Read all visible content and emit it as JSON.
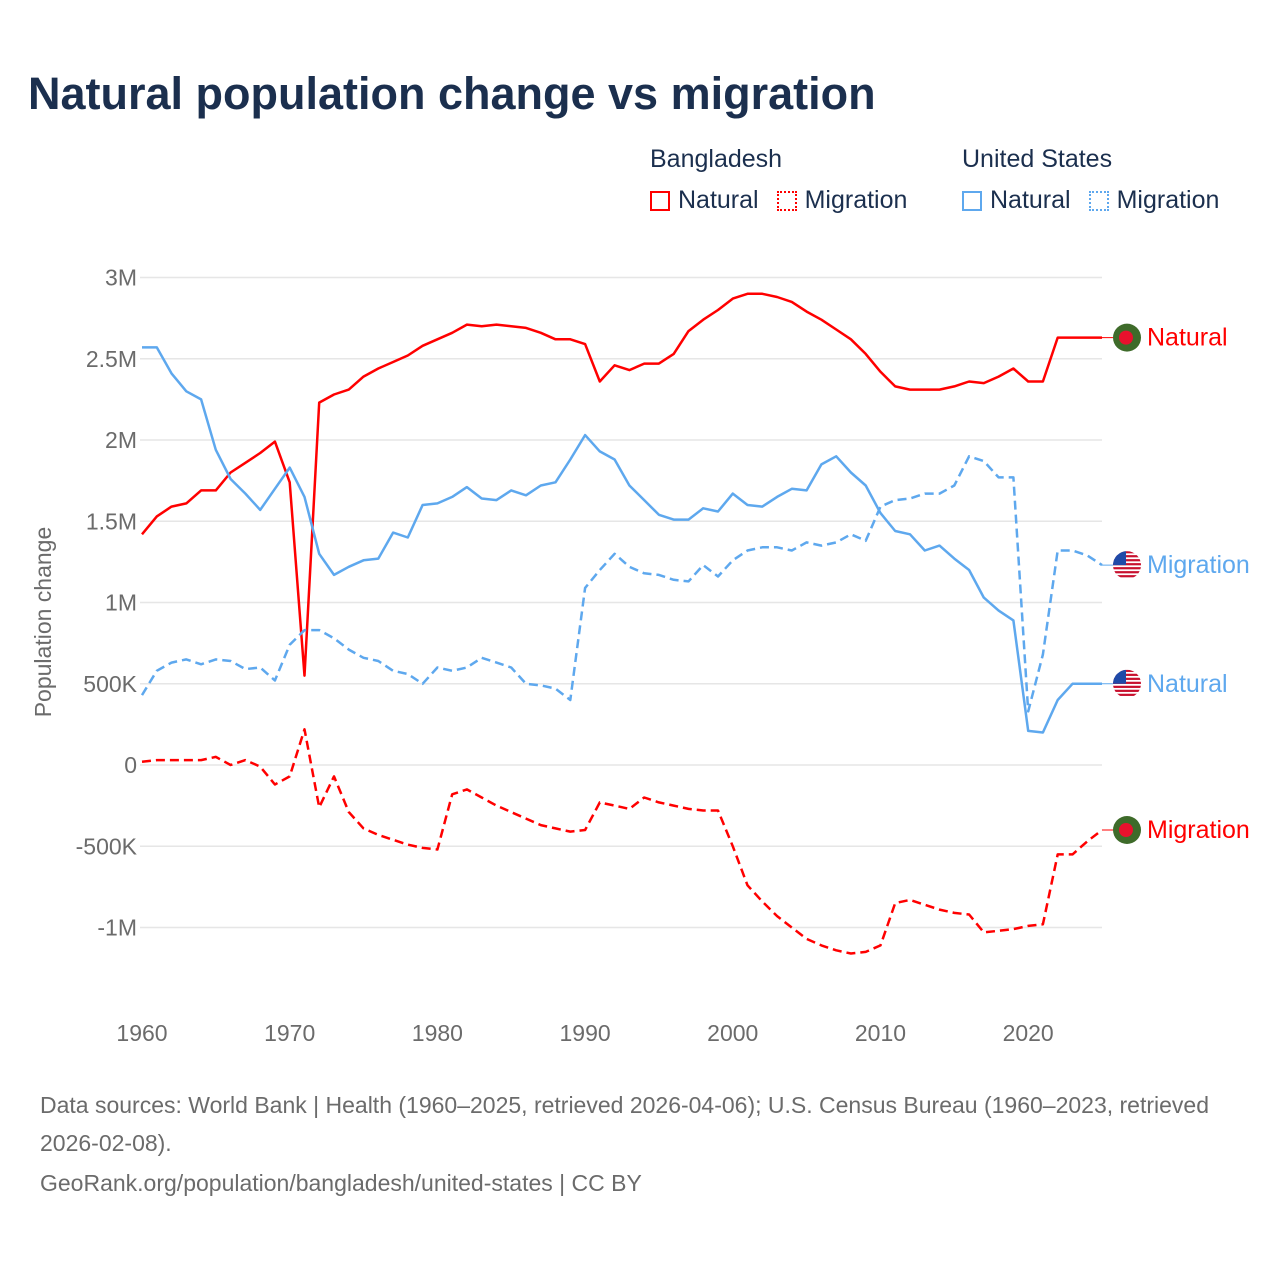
{
  "title": "Natural population change vs migration",
  "legend": {
    "groups": [
      {
        "name": "Bangladesh",
        "items": [
          "Natural",
          "Migration"
        ],
        "color": "#ff0000"
      },
      {
        "name": "United States",
        "items": [
          "Natural",
          "Migration"
        ],
        "color": "#5ea8ee"
      }
    ]
  },
  "footer": {
    "sources": "Data sources: World Bank | Health (1960–2025, retrieved 2026-04-06); U.S. Census Bureau (1960–2023, retrieved 2026-02-08).",
    "link": "GeoRank.org/population/bangladesh/united-states | CC BY"
  },
  "chart_data": {
    "type": "line",
    "title": "Natural population change vs migration",
    "xlabel": "",
    "ylabel": "Population change",
    "xlim": [
      1960,
      2025
    ],
    "ylim": [
      -1500000,
      3000000
    ],
    "x_ticks": [
      1960,
      1970,
      1980,
      1990,
      2000,
      2010,
      2020
    ],
    "y_ticks": [
      {
        "value": 3000000,
        "label": "3M"
      },
      {
        "value": 2500000,
        "label": "2.5M"
      },
      {
        "value": 2000000,
        "label": "2M"
      },
      {
        "value": 1500000,
        "label": "1.5M"
      },
      {
        "value": 1000000,
        "label": "1M"
      },
      {
        "value": 500000,
        "label": "500K"
      },
      {
        "value": 0,
        "label": "0"
      },
      {
        "value": -500000,
        "label": "-500K"
      },
      {
        "value": -1000000,
        "label": "-1M"
      }
    ],
    "grid": true,
    "legend_position": "top-right",
    "x_start": 1960,
    "series": [
      {
        "name": "Bangladesh Natural",
        "label": "Natural",
        "country": "Bangladesh",
        "color": "#ff0000",
        "dashed": false,
        "units": "millions",
        "values": [
          1.42,
          1.53,
          1.59,
          1.61,
          1.69,
          1.69,
          1.8,
          1.86,
          1.92,
          1.99,
          1.74,
          0.55,
          2.23,
          2.28,
          2.31,
          2.39,
          2.44,
          2.48,
          2.52,
          2.58,
          2.62,
          2.66,
          2.71,
          2.7,
          2.71,
          2.7,
          2.69,
          2.66,
          2.62,
          2.62,
          2.59,
          2.36,
          2.46,
          2.43,
          2.47,
          2.47,
          2.53,
          2.67,
          2.74,
          2.8,
          2.87,
          2.9,
          2.9,
          2.88,
          2.85,
          2.79,
          2.74,
          2.68,
          2.62,
          2.53,
          2.42,
          2.33,
          2.31,
          2.31,
          2.31,
          2.33,
          2.36,
          2.35,
          2.39,
          2.44,
          2.36,
          2.36,
          2.63,
          2.63,
          2.63,
          2.63
        ]
      },
      {
        "name": "Bangladesh Migration",
        "label": "Migration",
        "country": "Bangladesh",
        "color": "#ff0000",
        "dashed": true,
        "units": "millions",
        "values": [
          0.02,
          0.03,
          0.03,
          0.03,
          0.03,
          0.05,
          0.0,
          0.03,
          -0.01,
          -0.12,
          -0.07,
          0.22,
          -0.26,
          -0.07,
          -0.29,
          -0.39,
          -0.43,
          -0.46,
          -0.49,
          -0.51,
          -0.52,
          -0.18,
          -0.15,
          -0.2,
          -0.25,
          -0.29,
          -0.33,
          -0.37,
          -0.39,
          -0.41,
          -0.4,
          -0.23,
          -0.25,
          -0.27,
          -0.2,
          -0.23,
          -0.25,
          -0.27,
          -0.28,
          -0.28,
          -0.5,
          -0.74,
          -0.84,
          -0.93,
          -1.0,
          -1.07,
          -1.11,
          -1.14,
          -1.16,
          -1.15,
          -1.11,
          -0.85,
          -0.83,
          -0.86,
          -0.89,
          -0.91,
          -0.92,
          -1.03,
          -1.02,
          -1.01,
          -0.99,
          -0.98,
          -0.55,
          -0.55,
          -0.47,
          -0.4
        ]
      },
      {
        "name": "United States Natural",
        "label": "Natural",
        "country": "United States",
        "color": "#5ea8ee",
        "dashed": false,
        "units": "millions",
        "values": [
          2.57,
          2.57,
          2.41,
          2.3,
          2.25,
          1.94,
          1.76,
          1.67,
          1.57,
          1.7,
          1.83,
          1.65,
          1.3,
          1.17,
          1.22,
          1.26,
          1.27,
          1.43,
          1.4,
          1.6,
          1.61,
          1.65,
          1.71,
          1.64,
          1.63,
          1.69,
          1.66,
          1.72,
          1.74,
          1.88,
          2.03,
          1.93,
          1.88,
          1.72,
          1.63,
          1.54,
          1.51,
          1.51,
          1.58,
          1.56,
          1.67,
          1.6,
          1.59,
          1.65,
          1.7,
          1.69,
          1.85,
          1.9,
          1.8,
          1.72,
          1.55,
          1.44,
          1.42,
          1.32,
          1.35,
          1.27,
          1.2,
          1.03,
          0.95,
          0.89,
          0.21,
          0.2,
          0.4,
          0.5,
          0.5,
          0.5
        ]
      },
      {
        "name": "United States Migration",
        "label": "Migration",
        "country": "United States",
        "color": "#5ea8ee",
        "dashed": true,
        "units": "millions",
        "values": [
          0.43,
          0.58,
          0.63,
          0.65,
          0.62,
          0.65,
          0.64,
          0.59,
          0.6,
          0.52,
          0.74,
          0.83,
          0.83,
          0.78,
          0.71,
          0.66,
          0.64,
          0.58,
          0.56,
          0.5,
          0.6,
          0.58,
          0.6,
          0.66,
          0.63,
          0.6,
          0.5,
          0.49,
          0.47,
          0.4,
          1.09,
          1.2,
          1.3,
          1.22,
          1.18,
          1.17,
          1.14,
          1.13,
          1.23,
          1.16,
          1.26,
          1.32,
          1.34,
          1.34,
          1.32,
          1.37,
          1.35,
          1.37,
          1.42,
          1.38,
          1.59,
          1.63,
          1.64,
          1.67,
          1.67,
          1.72,
          1.9,
          1.87,
          1.77,
          1.77,
          0.33,
          0.68,
          1.32,
          1.32,
          1.29,
          1.23
        ]
      }
    ]
  }
}
